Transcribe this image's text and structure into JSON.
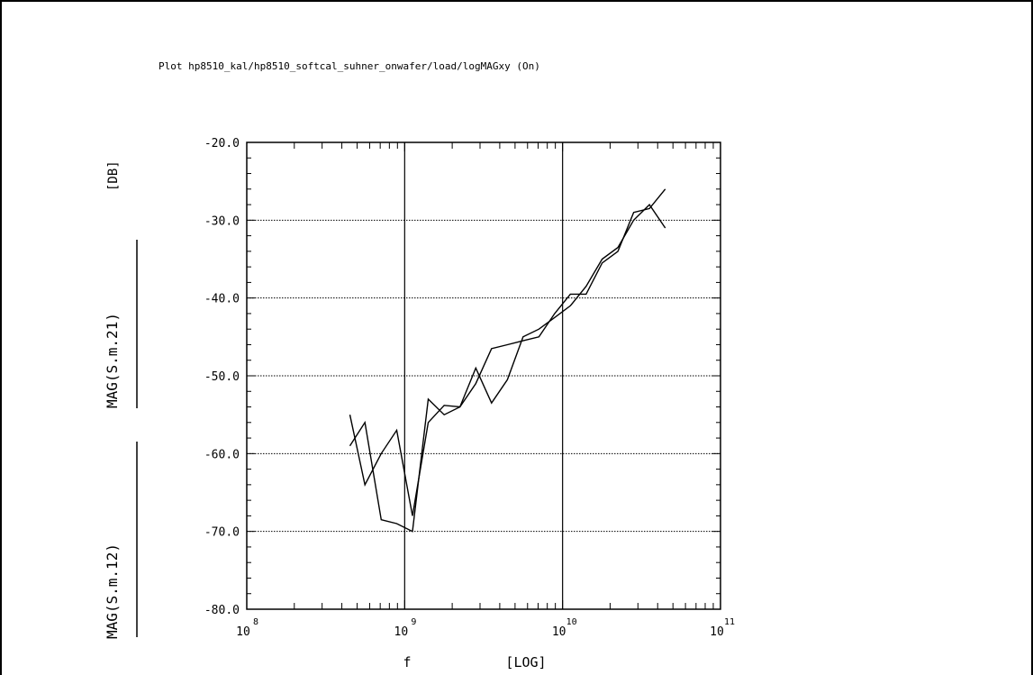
{
  "plot_title": "Plot hp8510_kal/hp8510_softcal_suhner_onwafer/load/logMAGxy (On)",
  "chart_data": {
    "type": "line",
    "title": "Plot hp8510_kal/hp8510_softcal_suhner_onwafer/load/logMAGxy (On)",
    "xlabel": "f",
    "xlabel_unit": "[LOG]",
    "xscale": "log",
    "xlim": [
      100000000,
      100000000000
    ],
    "x_ticks": [
      {
        "base": "10",
        "exp": "8"
      },
      {
        "base": "10",
        "exp": "9"
      },
      {
        "base": "10",
        "exp": "10"
      },
      {
        "base": "10",
        "exp": "11"
      }
    ],
    "ylabel_upper": "MAG(S.m.21)",
    "ylabel_unit": "[DB]",
    "ylabel_lower": "MAG(S.m.12)",
    "ylim": [
      -80,
      -20
    ],
    "y_ticks": [
      "-20.0",
      "-30.0",
      "-40.0",
      "-50.0",
      "-60.0",
      "-70.0",
      "-80.0"
    ],
    "grid": true,
    "series": [
      {
        "x": [
          450000000,
          560000000,
          710000000,
          890000000,
          1120000000,
          1410000000,
          1780000000,
          2240000000,
          2820000000,
          3550000000,
          4470000000,
          5620000000,
          7080000000,
          8910000000,
          11200000000,
          14100000000,
          17800000000,
          22400000000,
          28200000000,
          35500000000,
          44700000000
        ],
        "values": [
          -55.0,
          -64.0,
          -60.0,
          -57.0,
          -68.0,
          -56.0,
          -53.8,
          -54.0,
          -51.0,
          -46.5,
          -46.0,
          -45.5,
          -45.0,
          -42.0,
          -39.5,
          -39.5,
          -35.5,
          -34.0,
          -29.0,
          -28.5,
          -26.0
        ]
      },
      {
        "x": [
          450000000,
          560000000,
          710000000,
          890000000,
          1120000000,
          1410000000,
          1780000000,
          2240000000,
          2820000000,
          3550000000,
          4470000000,
          5620000000,
          7080000000,
          8910000000,
          11200000000,
          14100000000,
          17800000000,
          22400000000,
          28200000000,
          35500000000,
          44700000000
        ],
        "values": [
          -59.0,
          -56.0,
          -68.5,
          -69.0,
          -70.0,
          -53.0,
          -55.0,
          -54.0,
          -49.0,
          -53.5,
          -50.5,
          -45.0,
          -44.0,
          -42.5,
          -41.0,
          -38.5,
          -35.0,
          -33.5,
          -30.0,
          -28.0,
          -31.0
        ]
      }
    ]
  }
}
